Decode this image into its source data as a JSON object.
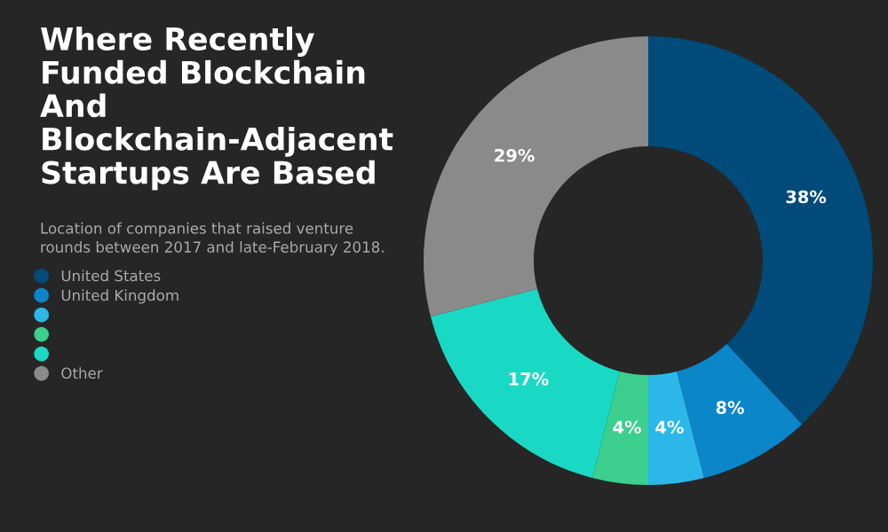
{
  "chart_data": {
    "type": "donut",
    "title": "Where Recently Funded Blockchain And Blockchain-Adjacent Startups Are Based",
    "subtitle": "Location of companies that raised venture rounds between 2017 and late-February 2018.",
    "categories": [
      "United States",
      "United Kingdom",
      null,
      null,
      null,
      "Other"
    ],
    "values": [
      38,
      8,
      4,
      4,
      17,
      29
    ],
    "colors": [
      "#004b7a",
      "#0a86c9",
      "#2bb8e8",
      "#3ccf8e",
      "#1ad9c4",
      "#8a8a8a"
    ],
    "value_labels": [
      "38%",
      "8%",
      "4%",
      "4%",
      "17%",
      "29%"
    ],
    "legend": "left"
  }
}
